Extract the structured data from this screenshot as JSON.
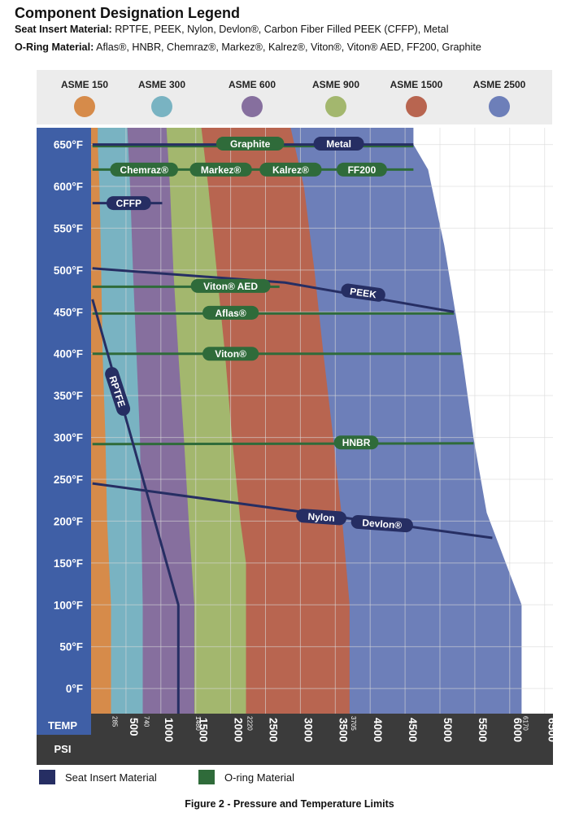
{
  "heading": {
    "title": "Component Designation Legend",
    "seat_label": "Seat Insert Material:",
    "seat_values": "RPTFE, PEEK, Nylon, Devlon®, Carbon Fiber Filled PEEK (CFFP), Metal",
    "oring_label": "O-Ring Material:",
    "oring_values": "Aflas®, HNBR, Chemraz®, Markez®, Kalrez®, Viton®, Viton® AED, FF200, Graphite"
  },
  "colors": {
    "asme150": "#d68b4a",
    "asme300": "#79b3c2",
    "asme600": "#866f9e",
    "asme900": "#a3b76e",
    "asme1500": "#b86550",
    "asme2500": "#6d7fb9",
    "axis_blue": "#3f5fa6",
    "axis_dark": "#3b3b3b",
    "seat": "#262e63",
    "oring": "#2f6b3a",
    "grid": "#d8d8d8"
  },
  "chart_data": {
    "type": "area",
    "ylabel": "TEMP",
    "xlabel": "PSI",
    "ylim": [
      -30,
      670
    ],
    "xlim": [
      0,
      6620
    ],
    "grid": true,
    "y_ticks": [
      0,
      50,
      100,
      150,
      200,
      250,
      300,
      350,
      400,
      450,
      500,
      550,
      600,
      650
    ],
    "y_tick_labels": [
      "0°F",
      "50°F",
      "100°F",
      "150°F",
      "200°F",
      "250°F",
      "300°F",
      "350°F",
      "400°F",
      "450°F",
      "500°F",
      "550°F",
      "600°F",
      "650°F"
    ],
    "x_ticks": [
      500,
      1000,
      1500,
      2000,
      2500,
      3000,
      3500,
      4000,
      4500,
      5000,
      5500,
      6000,
      6500
    ],
    "x_tick_labels": [
      "500",
      "1000",
      "1500",
      "2000",
      "2500",
      "3000",
      "3500",
      "4000",
      "4500",
      "5000",
      "5500",
      "6000",
      "6500"
    ],
    "rating_ticks": [
      {
        "psi": 285,
        "label": "285"
      },
      {
        "psi": 740,
        "label": "740"
      },
      {
        "psi": 1480,
        "label": "1480"
      },
      {
        "psi": 2220,
        "label": "2220"
      },
      {
        "psi": 3705,
        "label": "3705"
      },
      {
        "psi": 6170,
        "label": "6170"
      }
    ],
    "classes": [
      {
        "name": "ASME 150",
        "color_key": "asme150",
        "boundary": [
          [
            285,
            -30
          ],
          [
            285,
            100
          ],
          [
            230,
            200
          ],
          [
            205,
            300
          ],
          [
            165,
            400
          ],
          [
            145,
            500
          ],
          [
            120,
            600
          ],
          [
            95,
            650
          ],
          [
            95,
            670
          ]
        ]
      },
      {
        "name": "ASME 300",
        "color_key": "asme300",
        "boundary": [
          [
            740,
            -30
          ],
          [
            740,
            100
          ],
          [
            720,
            200
          ],
          [
            700,
            300
          ],
          [
            650,
            400
          ],
          [
            600,
            500
          ],
          [
            560,
            600
          ],
          [
            520,
            670
          ]
        ]
      },
      {
        "name": "ASME 600",
        "color_key": "asme600",
        "boundary": [
          [
            1480,
            -30
          ],
          [
            1480,
            100
          ],
          [
            1400,
            200
          ],
          [
            1330,
            300
          ],
          [
            1250,
            400
          ],
          [
            1180,
            500
          ],
          [
            1130,
            600
          ],
          [
            1080,
            670
          ]
        ]
      },
      {
        "name": "ASME 900",
        "color_key": "asme900",
        "boundary": [
          [
            2220,
            -30
          ],
          [
            2220,
            150
          ],
          [
            2140,
            200
          ],
          [
            2020,
            300
          ],
          [
            1920,
            400
          ],
          [
            1800,
            500
          ],
          [
            1680,
            600
          ],
          [
            1580,
            670
          ]
        ]
      },
      {
        "name": "ASME 1500",
        "color_key": "asme1500",
        "boundary": [
          [
            3705,
            -30
          ],
          [
            3705,
            100
          ],
          [
            3600,
            200
          ],
          [
            3470,
            300
          ],
          [
            3330,
            400
          ],
          [
            3200,
            500
          ],
          [
            3050,
            600
          ],
          [
            2860,
            670
          ]
        ]
      },
      {
        "name": "ASME 2500",
        "color_key": "asme2500",
        "boundary": [
          [
            6170,
            -30
          ],
          [
            6170,
            100
          ],
          [
            5670,
            210
          ],
          [
            5480,
            300
          ],
          [
            5280,
            420
          ],
          [
            5060,
            530
          ],
          [
            4830,
            620
          ],
          [
            4620,
            650
          ],
          [
            4620,
            670
          ]
        ]
      }
    ],
    "seat_lines": [
      {
        "name": "Metal",
        "points": [
          [
            20,
            650
          ],
          [
            4620,
            650
          ]
        ],
        "label_at": [
          3550,
          651
        ]
      },
      {
        "name": "CFFP",
        "points": [
          [
            20,
            580
          ],
          [
            1020,
            580
          ]
        ],
        "label_at": [
          540,
          580
        ]
      },
      {
        "name": "PEEK",
        "points": [
          [
            20,
            502
          ],
          [
            2780,
            485
          ],
          [
            5200,
            450
          ]
        ],
        "label_at": [
          3900,
          473
        ]
      },
      {
        "name": "RPTFE",
        "points": [
          [
            20,
            465
          ],
          [
            1250,
            100
          ],
          [
            1250,
            -30
          ]
        ],
        "label_at": [
          380,
          355
        ]
      },
      {
        "name": "Nylon",
        "points": [
          [
            20,
            245
          ],
          [
            5750,
            180
          ]
        ],
        "label_at": [
          3300,
          205
        ]
      },
      {
        "name": "Devlon®",
        "points": [],
        "label_at": [
          4170,
          197
        ]
      }
    ],
    "oring_lines": [
      {
        "name": "Graphite",
        "points": [
          [
            20,
            648
          ],
          [
            4620,
            648
          ]
        ],
        "label_at": [
          2280,
          651
        ]
      },
      {
        "name": "Chemraz®",
        "points": [
          [
            20,
            620
          ],
          [
            4620,
            620
          ]
        ],
        "label_at": [
          760,
          620
        ]
      },
      {
        "name": "Markez®",
        "points": [],
        "label_at": [
          1860,
          620
        ]
      },
      {
        "name": "Kalrez®",
        "points": [],
        "label_at": [
          2860,
          620
        ]
      },
      {
        "name": "FF200",
        "points": [],
        "label_at": [
          3880,
          620
        ]
      },
      {
        "name": "Viton® AED",
        "points": [
          [
            20,
            480
          ],
          [
            2700,
            480
          ]
        ],
        "label_at": [
          2000,
          481
        ]
      },
      {
        "name": "Aflas®",
        "points": [
          [
            20,
            448
          ],
          [
            5200,
            448
          ]
        ],
        "label_at": [
          2000,
          449
        ]
      },
      {
        "name": "Viton®",
        "points": [
          [
            20,
            400
          ],
          [
            5300,
            400
          ]
        ],
        "label_at": [
          2000,
          400
        ]
      },
      {
        "name": "HNBR",
        "points": [
          [
            20,
            292
          ],
          [
            5480,
            293
          ]
        ],
        "label_at": [
          3800,
          294
        ]
      }
    ]
  },
  "legend": {
    "seat": "Seat Insert Material",
    "oring": "O-ring Material"
  },
  "caption": "Figure 2 - Pressure and Temperature Limits"
}
